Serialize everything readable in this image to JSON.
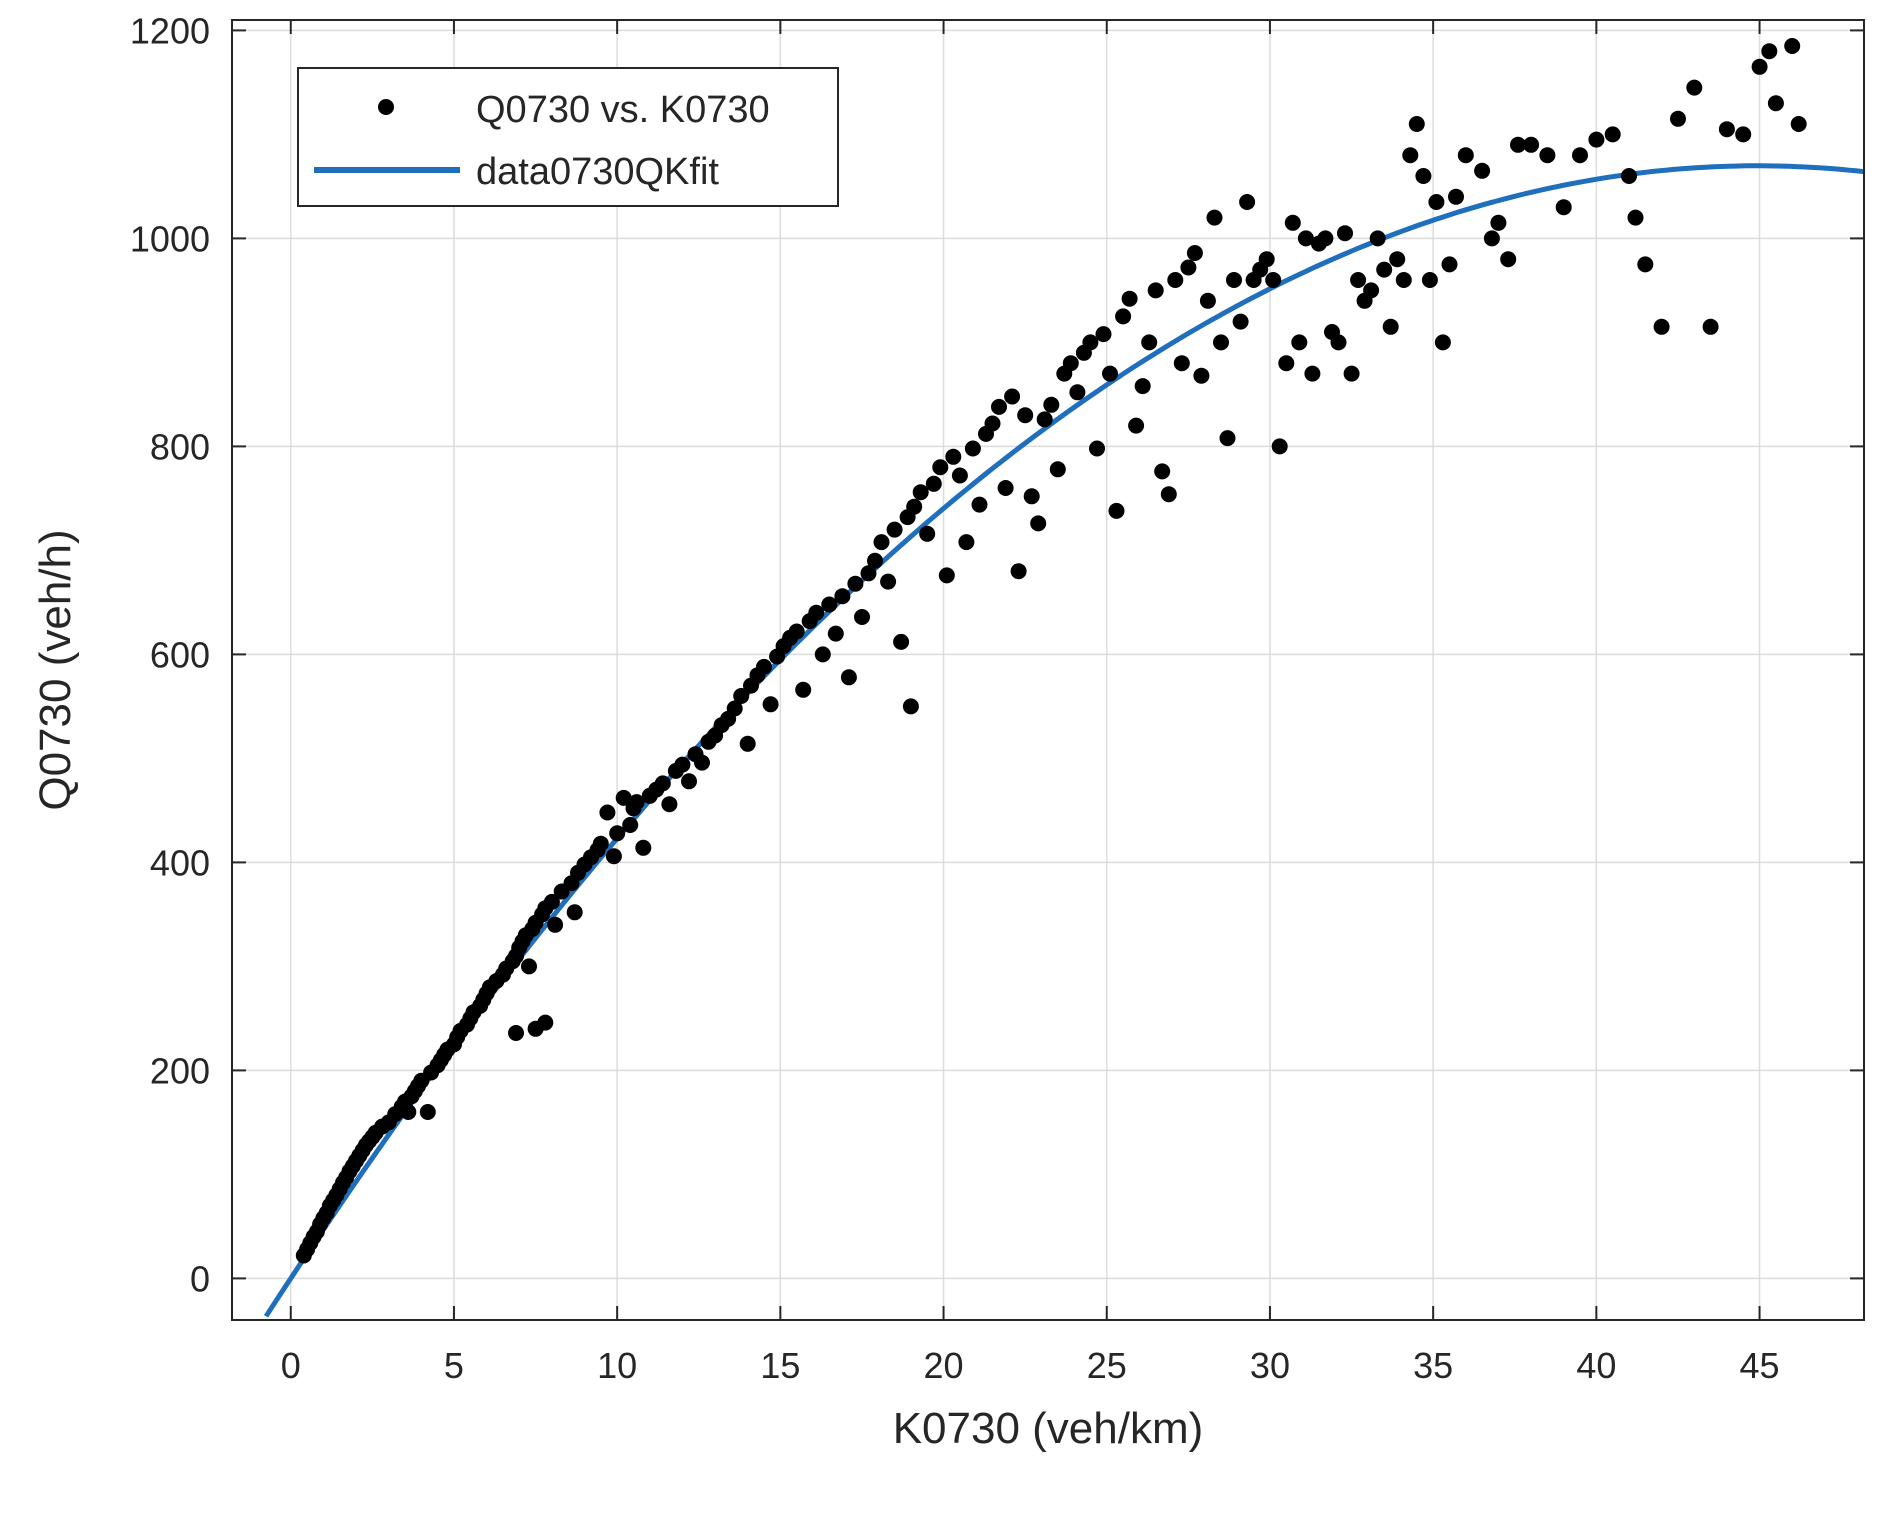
{
  "chart_data": {
    "type": "scatter",
    "xlabel": "K0730 (veh/km)",
    "ylabel": "Q0730 (veh/h)",
    "xlim": [
      -1.8,
      48.2
    ],
    "ylim": [
      -40,
      1210
    ],
    "xticks": [
      0,
      5,
      10,
      15,
      20,
      25,
      30,
      35,
      40,
      45
    ],
    "yticks": [
      0,
      200,
      400,
      600,
      800,
      1000,
      1200
    ],
    "grid": true,
    "legend_position": "top-left",
    "colors": {
      "points": "#000000",
      "fit": "#1f6fbd",
      "grid": "#dcdcdc",
      "axes": "#262626"
    },
    "series": [
      {
        "name": "Q0730 vs. K0730",
        "kind": "scatter",
        "points": [
          [
            0.4,
            22
          ],
          [
            0.5,
            28
          ],
          [
            0.6,
            34
          ],
          [
            0.7,
            40
          ],
          [
            0.8,
            45
          ],
          [
            0.9,
            52
          ],
          [
            1.0,
            58
          ],
          [
            1.1,
            63
          ],
          [
            1.2,
            70
          ],
          [
            1.3,
            75
          ],
          [
            1.4,
            80
          ],
          [
            1.5,
            86
          ],
          [
            1.6,
            92
          ],
          [
            1.7,
            97
          ],
          [
            1.8,
            103
          ],
          [
            1.9,
            108
          ],
          [
            2.0,
            113
          ],
          [
            2.1,
            118
          ],
          [
            2.2,
            123
          ],
          [
            2.3,
            128
          ],
          [
            2.4,
            132
          ],
          [
            2.5,
            136
          ],
          [
            2.6,
            140
          ],
          [
            2.8,
            146
          ],
          [
            3.0,
            150
          ],
          [
            3.2,
            158
          ],
          [
            3.4,
            165
          ],
          [
            3.5,
            170
          ],
          [
            3.6,
            160
          ],
          [
            3.7,
            175
          ],
          [
            3.8,
            180
          ],
          [
            3.9,
            185
          ],
          [
            4.0,
            190
          ],
          [
            4.2,
            160
          ],
          [
            4.3,
            198
          ],
          [
            4.5,
            205
          ],
          [
            4.6,
            210
          ],
          [
            4.7,
            215
          ],
          [
            4.8,
            220
          ],
          [
            5.0,
            225
          ],
          [
            5.1,
            232
          ],
          [
            5.2,
            238
          ],
          [
            5.4,
            244
          ],
          [
            5.5,
            250
          ],
          [
            5.6,
            256
          ],
          [
            5.8,
            262
          ],
          [
            5.9,
            268
          ],
          [
            6.0,
            274
          ],
          [
            6.1,
            280
          ],
          [
            6.3,
            286
          ],
          [
            6.5,
            292
          ],
          [
            6.6,
            298
          ],
          [
            6.8,
            305
          ],
          [
            6.9,
            310
          ],
          [
            7.0,
            318
          ],
          [
            7.1,
            324
          ],
          [
            7.2,
            330
          ],
          [
            7.4,
            336
          ],
          [
            7.5,
            342
          ],
          [
            7.7,
            350
          ],
          [
            7.8,
            356
          ],
          [
            8.0,
            362
          ],
          [
            6.9,
            236
          ],
          [
            7.3,
            300
          ],
          [
            7.5,
            240
          ],
          [
            7.8,
            246
          ],
          [
            8.1,
            340
          ],
          [
            8.3,
            372
          ],
          [
            8.6,
            380
          ],
          [
            8.7,
            352
          ],
          [
            8.8,
            390
          ],
          [
            9.0,
            398
          ],
          [
            9.2,
            405
          ],
          [
            9.4,
            412
          ],
          [
            9.5,
            418
          ],
          [
            9.7,
            448
          ],
          [
            9.9,
            406
          ],
          [
            10.0,
            428
          ],
          [
            10.2,
            462
          ],
          [
            10.4,
            436
          ],
          [
            10.5,
            452
          ],
          [
            10.6,
            458
          ],
          [
            10.8,
            414
          ],
          [
            11.0,
            464
          ],
          [
            11.2,
            470
          ],
          [
            11.4,
            476
          ],
          [
            11.6,
            456
          ],
          [
            11.8,
            488
          ],
          [
            12.0,
            494
          ],
          [
            12.2,
            478
          ],
          [
            12.4,
            504
          ],
          [
            12.6,
            496
          ],
          [
            12.8,
            516
          ],
          [
            13.0,
            522
          ],
          [
            13.2,
            532
          ],
          [
            13.4,
            538
          ],
          [
            13.6,
            548
          ],
          [
            13.8,
            560
          ],
          [
            14.0,
            514
          ],
          [
            14.1,
            570
          ],
          [
            14.3,
            580
          ],
          [
            14.5,
            588
          ],
          [
            14.7,
            552
          ],
          [
            14.9,
            598
          ],
          [
            15.1,
            608
          ],
          [
            15.3,
            616
          ],
          [
            15.5,
            622
          ],
          [
            15.7,
            566
          ],
          [
            15.9,
            632
          ],
          [
            16.1,
            640
          ],
          [
            16.3,
            600
          ],
          [
            16.5,
            648
          ],
          [
            16.7,
            620
          ],
          [
            16.9,
            656
          ],
          [
            17.1,
            578
          ],
          [
            17.3,
            668
          ],
          [
            17.5,
            636
          ],
          [
            17.7,
            678
          ],
          [
            17.9,
            690
          ],
          [
            18.1,
            708
          ],
          [
            18.3,
            670
          ],
          [
            18.5,
            720
          ],
          [
            18.7,
            612
          ],
          [
            18.9,
            732
          ],
          [
            19.0,
            550
          ],
          [
            19.1,
            742
          ],
          [
            19.3,
            756
          ],
          [
            19.5,
            716
          ],
          [
            19.7,
            764
          ],
          [
            19.9,
            780
          ],
          [
            20.1,
            676
          ],
          [
            20.3,
            790
          ],
          [
            20.5,
            772
          ],
          [
            20.7,
            708
          ],
          [
            20.9,
            798
          ],
          [
            21.1,
            744
          ],
          [
            21.3,
            812
          ],
          [
            21.5,
            822
          ],
          [
            21.7,
            838
          ],
          [
            21.9,
            760
          ],
          [
            22.1,
            848
          ],
          [
            22.3,
            680
          ],
          [
            22.5,
            830
          ],
          [
            22.7,
            752
          ],
          [
            22.9,
            726
          ],
          [
            23.1,
            826
          ],
          [
            23.3,
            840
          ],
          [
            23.5,
            778
          ],
          [
            23.7,
            870
          ],
          [
            23.9,
            880
          ],
          [
            24.1,
            852
          ],
          [
            24.3,
            890
          ],
          [
            24.5,
            900
          ],
          [
            24.7,
            798
          ],
          [
            24.9,
            908
          ],
          [
            25.1,
            870
          ],
          [
            25.3,
            738
          ],
          [
            25.5,
            925
          ],
          [
            25.7,
            942
          ],
          [
            25.9,
            820
          ],
          [
            26.1,
            858
          ],
          [
            26.3,
            900
          ],
          [
            26.5,
            950
          ],
          [
            26.7,
            776
          ],
          [
            26.9,
            754
          ],
          [
            27.1,
            960
          ],
          [
            27.3,
            880
          ],
          [
            27.5,
            972
          ],
          [
            27.7,
            986
          ],
          [
            27.9,
            868
          ],
          [
            28.1,
            940
          ],
          [
            28.3,
            1020
          ],
          [
            28.5,
            900
          ],
          [
            28.7,
            808
          ],
          [
            28.9,
            960
          ],
          [
            29.1,
            920
          ],
          [
            29.3,
            1035
          ],
          [
            29.5,
            960
          ],
          [
            29.7,
            970
          ],
          [
            29.9,
            980
          ],
          [
            30.1,
            960
          ],
          [
            30.3,
            800
          ],
          [
            30.5,
            880
          ],
          [
            30.7,
            1015
          ],
          [
            30.9,
            900
          ],
          [
            31.1,
            1000
          ],
          [
            31.3,
            870
          ],
          [
            31.5,
            995
          ],
          [
            31.7,
            1000
          ],
          [
            31.9,
            910
          ],
          [
            32.1,
            900
          ],
          [
            32.3,
            1005
          ],
          [
            32.5,
            870
          ],
          [
            32.7,
            960
          ],
          [
            32.9,
            940
          ],
          [
            33.1,
            950
          ],
          [
            33.3,
            1000
          ],
          [
            33.5,
            970
          ],
          [
            33.7,
            915
          ],
          [
            33.9,
            980
          ],
          [
            34.1,
            960
          ],
          [
            34.3,
            1080
          ],
          [
            34.5,
            1110
          ],
          [
            34.7,
            1060
          ],
          [
            34.9,
            960
          ],
          [
            35.1,
            1035
          ],
          [
            35.3,
            900
          ],
          [
            35.5,
            975
          ],
          [
            35.7,
            1040
          ],
          [
            36.0,
            1080
          ],
          [
            36.5,
            1065
          ],
          [
            36.8,
            1000
          ],
          [
            37.0,
            1015
          ],
          [
            37.3,
            980
          ],
          [
            37.6,
            1090
          ],
          [
            38.0,
            1090
          ],
          [
            38.5,
            1080
          ],
          [
            39.0,
            1030
          ],
          [
            39.5,
            1080
          ],
          [
            40.0,
            1095
          ],
          [
            40.5,
            1100
          ],
          [
            41.0,
            1060
          ],
          [
            41.2,
            1020
          ],
          [
            41.5,
            975
          ],
          [
            42.0,
            915
          ],
          [
            42.5,
            1115
          ],
          [
            43.0,
            1145
          ],
          [
            43.5,
            915
          ],
          [
            44.0,
            1105
          ],
          [
            44.5,
            1100
          ],
          [
            45.0,
            1165
          ],
          [
            45.3,
            1180
          ],
          [
            45.5,
            1130
          ],
          [
            46.0,
            1185
          ],
          [
            46.2,
            1110
          ]
        ]
      },
      {
        "name": "data0730QKfit",
        "kind": "line",
        "model": "quadratic",
        "coefficients": [
          47.61,
          -0.5297,
          0
        ]
      }
    ]
  }
}
